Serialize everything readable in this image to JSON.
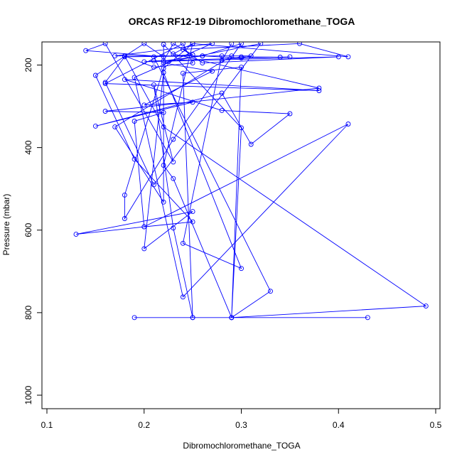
{
  "chart_data": {
    "type": "line",
    "title": "ORCAS RF12-19 Dibromochloromethane_TOGA",
    "xlabel": "Dibromochloromethane_TOGA",
    "ylabel": "Pressure (mbar)",
    "xlim": [
      0.1,
      0.5
    ],
    "ylim": [
      1035,
      148
    ],
    "y_reversed": true,
    "x_ticks": [
      "0.1",
      "0.2",
      "0.3",
      "0.4",
      "0.5"
    ],
    "x_tick_values": [
      0.1,
      0.2,
      0.3,
      0.4,
      0.5
    ],
    "y_ticks": [
      "200",
      "400",
      "600",
      "800",
      "1000"
    ],
    "y_tick_values": [
      200,
      400,
      600,
      800,
      1000
    ],
    "grid": false,
    "color": "#0000ff",
    "series": [
      {
        "points": [
          [
            0.19,
            812
          ],
          [
            0.25,
            812
          ],
          [
            0.29,
            812
          ],
          [
            0.43,
            812
          ],
          [
            0.29,
            812
          ],
          [
            0.49,
            784
          ],
          [
            0.22,
            350
          ],
          [
            0.18,
            178
          ],
          [
            0.21,
            205
          ],
          [
            0.25,
            195
          ],
          [
            0.24,
            148
          ],
          [
            0.16,
            245
          ],
          [
            0.38,
            262
          ],
          [
            0.18,
            235
          ],
          [
            0.28,
            310
          ],
          [
            0.35,
            318
          ],
          [
            0.31,
            392
          ],
          [
            0.28,
            268
          ],
          [
            0.15,
            348
          ],
          [
            0.25,
            290
          ],
          [
            0.2,
            297
          ],
          [
            0.27,
            215
          ],
          [
            0.22,
            195
          ],
          [
            0.32,
            148
          ],
          [
            0.21,
            490
          ],
          [
            0.16,
            242
          ],
          [
            0.18,
            180
          ],
          [
            0.26,
            178
          ],
          [
            0.3,
            148
          ],
          [
            0.23,
            380
          ],
          [
            0.18,
            572
          ],
          [
            0.18,
            515
          ],
          [
            0.22,
            208
          ],
          [
            0.25,
            148
          ],
          [
            0.23,
            173
          ],
          [
            0.38,
            256
          ],
          [
            0.16,
            312
          ],
          [
            0.22,
            315
          ],
          [
            0.19,
            336
          ],
          [
            0.2,
            592
          ],
          [
            0.25,
            580
          ],
          [
            0.19,
            428
          ],
          [
            0.15,
            225
          ],
          [
            0.2,
            148
          ],
          [
            0.22,
            180
          ],
          [
            0.14,
            165
          ],
          [
            0.16,
            148
          ],
          [
            0.23,
            435
          ],
          [
            0.21,
            248
          ],
          [
            0.23,
            595
          ],
          [
            0.25,
            812
          ],
          [
            0.24,
            220
          ],
          [
            0.3,
            205
          ],
          [
            0.29,
            812
          ],
          [
            0.33,
            748
          ],
          [
            0.21,
            180
          ],
          [
            0.25,
            175
          ],
          [
            0.23,
            148
          ],
          [
            0.22,
            190
          ],
          [
            0.26,
            178
          ],
          [
            0.3,
            183
          ],
          [
            0.31,
            178
          ],
          [
            0.28,
            178
          ],
          [
            0.24,
            632
          ],
          [
            0.3,
            693
          ],
          [
            0.22,
            218
          ],
          [
            0.2,
            645
          ],
          [
            0.25,
            555
          ],
          [
            0.13,
            610
          ],
          [
            0.2,
            592
          ],
          [
            0.41,
            343
          ],
          [
            0.24,
            762
          ],
          [
            0.19,
            230
          ],
          [
            0.27,
            148
          ],
          [
            0.17,
            178
          ],
          [
            0.29,
            178
          ],
          [
            0.17,
            350
          ],
          [
            0.22,
            532
          ],
          [
            0.22,
            150
          ],
          [
            0.3,
            352
          ],
          [
            0.29,
            812
          ],
          [
            0.23,
            475
          ],
          [
            0.22,
            443
          ],
          [
            0.25,
            148
          ],
          [
            0.41,
            180
          ],
          [
            0.36,
            148
          ],
          [
            0.24,
            162
          ],
          [
            0.26,
            195
          ],
          [
            0.4,
            180
          ],
          [
            0.2,
            192
          ],
          [
            0.21,
            190
          ],
          [
            0.35,
            180
          ],
          [
            0.34,
            181
          ],
          [
            0.3,
            180
          ],
          [
            0.28,
            189
          ],
          [
            0.29,
            148
          ]
        ]
      }
    ]
  }
}
